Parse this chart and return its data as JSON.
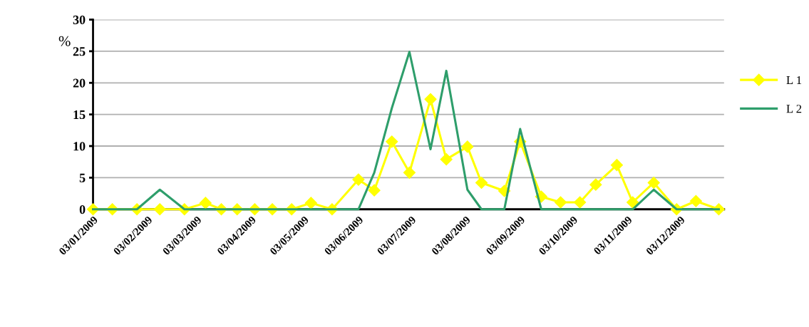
{
  "chart_data": {
    "type": "line",
    "ylabel": "%",
    "x": [
      "2009-01-03",
      "2009-01-14",
      "2009-01-28",
      "2009-02-10",
      "2009-02-24",
      "2009-03-08",
      "2009-03-17",
      "2009-03-26",
      "2009-04-05",
      "2009-04-15",
      "2009-04-26",
      "2009-05-07",
      "2009-05-19",
      "2009-06-03",
      "2009-06-12",
      "2009-06-22",
      "2009-07-02",
      "2009-07-14",
      "2009-07-23",
      "2009-08-04",
      "2009-08-12",
      "2009-08-25",
      "2009-09-03",
      "2009-09-15",
      "2009-09-26",
      "2009-10-07",
      "2009-10-16",
      "2009-10-28",
      "2009-11-06",
      "2009-11-18",
      "2009-12-01",
      "2009-12-12",
      "2009-12-25"
    ],
    "series": [
      {
        "name": "L 1",
        "color": "#ffff00",
        "marker": "diamond",
        "values": [
          0,
          0,
          0,
          0,
          0,
          1,
          0,
          0,
          0,
          0,
          0,
          1,
          0,
          4.7,
          3,
          10.7,
          5.8,
          17.4,
          7.9,
          9.9,
          4.2,
          2.9,
          10.7,
          2,
          1.1,
          1.1,
          3.9,
          7,
          1.1,
          4.2,
          0,
          1.3,
          0
        ]
      },
      {
        "name": "L 2",
        "color": "#2e9e6b",
        "marker": "none",
        "values": [
          0,
          0,
          0,
          3.1,
          0,
          0,
          0,
          0,
          0,
          0,
          0,
          0,
          0,
          0,
          5.8,
          16,
          24.9,
          9.5,
          21.9,
          3.1,
          0,
          0,
          12.7,
          0,
          0,
          0,
          0,
          0,
          0,
          3.1,
          0,
          0,
          0
        ]
      }
    ],
    "xlim": [
      "2009-01-03",
      "2009-12-28"
    ],
    "xticks": [
      {
        "value": "2009-01-03",
        "label": "03/01/2009"
      },
      {
        "value": "2009-02-03",
        "label": "03/02/2009"
      },
      {
        "value": "2009-03-03",
        "label": "03/03/2009"
      },
      {
        "value": "2009-04-03",
        "label": "03/04/2009"
      },
      {
        "value": "2009-05-03",
        "label": "03/05/2009"
      },
      {
        "value": "2009-06-03",
        "label": "03/06/2009"
      },
      {
        "value": "2009-07-03",
        "label": "03/07/2009"
      },
      {
        "value": "2009-08-03",
        "label": "03/08/2009"
      },
      {
        "value": "2009-09-03",
        "label": "03/09/2009"
      },
      {
        "value": "2009-10-03",
        "label": "03/10/2009"
      },
      {
        "value": "2009-11-03",
        "label": "03/11/2009"
      },
      {
        "value": "2009-12-03",
        "label": "03/12/2009"
      }
    ],
    "ylim": [
      0,
      30
    ],
    "yticks": [
      0,
      5,
      10,
      15,
      20,
      25,
      30
    ],
    "grid": "y",
    "legend": "right",
    "line_style": "solid"
  }
}
